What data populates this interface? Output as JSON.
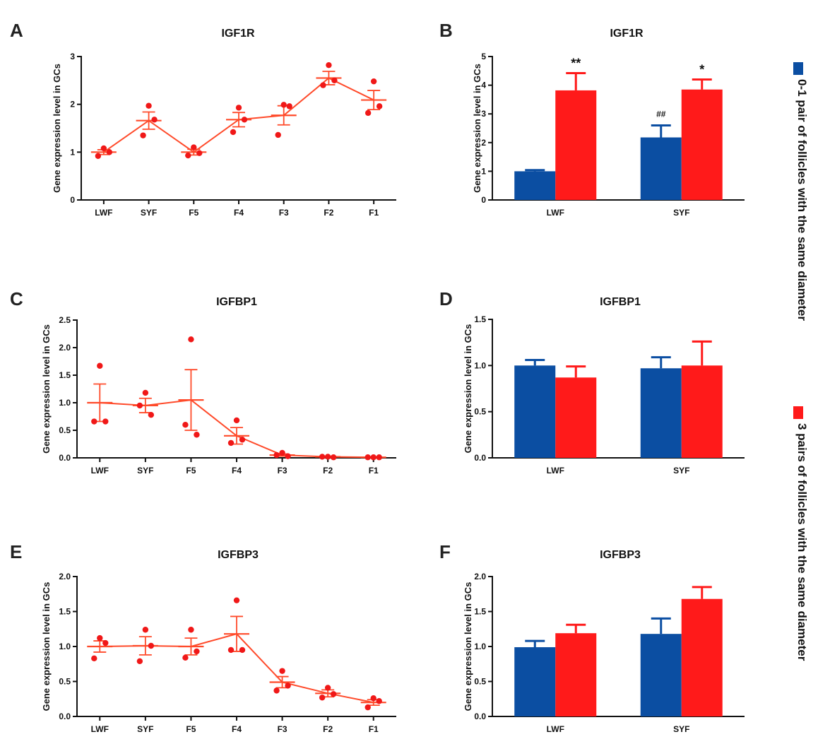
{
  "colors": {
    "blue": "#0b4ea2",
    "red": "#ff1a1a",
    "line": "#ff4a2a",
    "dot": "#f01818",
    "axis": "#111111"
  },
  "legend": {
    "items": [
      {
        "label": "0-1 pair of follicles with the same diameter",
        "color": "#0b4ea2"
      },
      {
        "label": "3 pairs of follicles with the same diameter",
        "color": "#ff1a1a"
      }
    ]
  },
  "chart_data": [
    {
      "panel": "A",
      "type": "scatter",
      "title": "IGF1R",
      "ylabel": "Gene expression level in GCs",
      "categories": [
        "LWF",
        "SYF",
        "F5",
        "F4",
        "F3",
        "F2",
        "F1"
      ],
      "ylim": [
        0,
        3
      ],
      "yticks": [
        "0",
        "1",
        "2",
        "3"
      ],
      "means": [
        1.0,
        1.66,
        1.0,
        1.68,
        1.77,
        2.55,
        2.09
      ],
      "sem": [
        0.05,
        0.18,
        0.06,
        0.15,
        0.2,
        0.14,
        0.2
      ],
      "points": [
        [
          1.08,
          0.92,
          1.0
        ],
        [
          1.97,
          1.35,
          1.68
        ],
        [
          1.1,
          0.93,
          0.98
        ],
        [
          1.93,
          1.42,
          1.68
        ],
        [
          1.99,
          1.36,
          1.96
        ],
        [
          2.82,
          2.4,
          2.5
        ],
        [
          2.48,
          1.82,
          1.96
        ]
      ]
    },
    {
      "panel": "B",
      "type": "bar",
      "title": "IGF1R",
      "ylabel": "Gene expression level in GCs",
      "categories": [
        "LWF",
        "SYF"
      ],
      "ylim": [
        0,
        5
      ],
      "yticks": [
        "0",
        "1",
        "2",
        "3",
        "4",
        "5"
      ],
      "series": [
        {
          "name": "0-1 pair of follicles with the same diameter",
          "values": [
            1.0,
            2.18
          ],
          "sem": [
            0.04,
            0.42
          ],
          "annotations": [
            "",
            "##"
          ]
        },
        {
          "name": "3 pairs of follicles with the same diameter",
          "values": [
            3.82,
            3.85
          ],
          "sem": [
            0.6,
            0.35
          ],
          "annotations": [
            "**",
            "*"
          ]
        }
      ]
    },
    {
      "panel": "C",
      "type": "scatter",
      "title": "IGFBP1",
      "ylabel": "Gene expression level in GCs",
      "categories": [
        "LWF",
        "SYF",
        "F5",
        "F4",
        "F3",
        "F2",
        "F1"
      ],
      "ylim": [
        0,
        2.5
      ],
      "yticks": [
        "0.0",
        "0.5",
        "1.0",
        "1.5",
        "2.0",
        "2.5"
      ],
      "means": [
        1.0,
        0.95,
        1.05,
        0.4,
        0.05,
        0.02,
        0.01
      ],
      "sem": [
        0.34,
        0.13,
        0.55,
        0.15,
        0.02,
        0.01,
        0.005
      ],
      "points": [
        [
          1.67,
          0.66,
          0.66
        ],
        [
          1.18,
          0.95,
          0.78
        ],
        [
          2.15,
          0.6,
          0.42
        ],
        [
          0.68,
          0.27,
          0.33
        ],
        [
          0.09,
          0.05,
          0.03
        ],
        [
          0.02,
          0.02,
          0.01
        ],
        [
          0.01,
          0.01,
          0.01
        ]
      ]
    },
    {
      "panel": "D",
      "type": "bar",
      "title": "IGFBP1",
      "ylabel": "Gene expression level in GCs",
      "categories": [
        "LWF",
        "SYF"
      ],
      "ylim": [
        0,
        1.5
      ],
      "yticks": [
        "0.0",
        "0.5",
        "1.0",
        "1.5"
      ],
      "series": [
        {
          "name": "0-1 pair of follicles with the same diameter",
          "values": [
            1.0,
            0.97
          ],
          "sem": [
            0.06,
            0.12
          ],
          "annotations": [
            "",
            ""
          ]
        },
        {
          "name": "3 pairs of follicles with the same diameter",
          "values": [
            0.87,
            1.0
          ],
          "sem": [
            0.12,
            0.26
          ],
          "annotations": [
            "",
            ""
          ]
        }
      ]
    },
    {
      "panel": "E",
      "type": "scatter",
      "title": "IGFBP3",
      "ylabel": "Gene expression level in GCs",
      "categories": [
        "LWF",
        "SYF",
        "F5",
        "F4",
        "F3",
        "F2",
        "F1"
      ],
      "ylim": [
        0,
        2.0
      ],
      "yticks": [
        "0.0",
        "0.5",
        "1.0",
        "1.5",
        "2.0"
      ],
      "means": [
        1.0,
        1.01,
        1.0,
        1.18,
        0.49,
        0.33,
        0.2
      ],
      "sem": [
        0.08,
        0.13,
        0.12,
        0.25,
        0.08,
        0.05,
        0.04
      ],
      "points": [
        [
          1.12,
          0.83,
          1.05
        ],
        [
          1.24,
          0.79,
          1.01
        ],
        [
          1.24,
          0.84,
          0.93
        ],
        [
          1.66,
          0.95,
          0.95
        ],
        [
          0.65,
          0.37,
          0.44
        ],
        [
          0.41,
          0.27,
          0.32
        ],
        [
          0.26,
          0.13,
          0.22
        ]
      ]
    },
    {
      "panel": "F",
      "type": "bar",
      "title": "IGFBP3",
      "ylabel": "Gene expression level in GCs",
      "categories": [
        "LWF",
        "SYF"
      ],
      "ylim": [
        0,
        2.0
      ],
      "yticks": [
        "0.0",
        "0.5",
        "1.0",
        "1.5",
        "2.0"
      ],
      "series": [
        {
          "name": "0-1 pair of follicles with the same diameter",
          "values": [
            0.99,
            1.18
          ],
          "sem": [
            0.09,
            0.22
          ],
          "annotations": [
            "",
            ""
          ]
        },
        {
          "name": "3 pairs of follicles with the same diameter",
          "values": [
            1.19,
            1.68
          ],
          "sem": [
            0.12,
            0.17
          ],
          "annotations": [
            "",
            ""
          ]
        }
      ]
    }
  ]
}
